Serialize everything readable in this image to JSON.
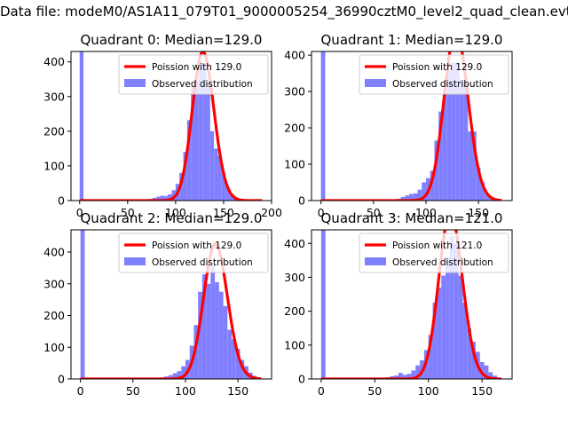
{
  "figure": {
    "suptitle": "Data file: modeM0/AS1A11_079T01_9000005254_36990cztM0_level2_quad_clean.evt"
  },
  "chart_data": [
    {
      "type": "bar",
      "title": "Quadrant 0: Median=129.0",
      "xlim": [
        -9,
        200
      ],
      "ylim": [
        0,
        430
      ],
      "xticks": [
        0,
        50,
        100,
        150,
        200
      ],
      "yticks": [
        0,
        100,
        200,
        300,
        400
      ],
      "legend": {
        "placement": "top-right",
        "entries": [
          "Poission with 129.0",
          "Observed distribution"
        ]
      },
      "bin_width": 4,
      "series": [
        {
          "name": "Observed distribution",
          "x": [
            0,
            64,
            68,
            72,
            76,
            80,
            84,
            88,
            92,
            96,
            100,
            104,
            108,
            112,
            116,
            120,
            124,
            128,
            132,
            136,
            140,
            144,
            148,
            152,
            156,
            160,
            164,
            168,
            172,
            176,
            180,
            184,
            188
          ],
          "values": [
            430,
            2,
            3,
            5,
            8,
            11,
            14,
            13,
            18,
            30,
            48,
            80,
            140,
            232,
            330,
            345,
            400,
            395,
            340,
            200,
            150,
            130,
            80,
            40,
            18,
            10,
            5,
            3,
            2,
            1,
            1,
            0,
            1
          ]
        },
        {
          "name": "Poission with 129.0",
          "lambda": 129.0,
          "curve_x_range": [
            0,
            190
          ]
        }
      ],
      "bar_color": "#8080ff",
      "line_color": "#ff0000"
    },
    {
      "type": "bar",
      "title": "Quadrant 1: Median=129.0",
      "xlim": [
        -9,
        182
      ],
      "ylim": [
        0,
        410
      ],
      "xticks": [
        0,
        50,
        100,
        150
      ],
      "yticks": [
        0,
        100,
        200,
        300,
        400
      ],
      "legend": {
        "placement": "top-right",
        "entries": [
          "Poission with 129.0",
          "Observed distribution"
        ]
      },
      "bin_width": 4,
      "series": [
        {
          "name": "Observed distribution",
          "x": [
            0,
            60,
            64,
            68,
            72,
            76,
            80,
            84,
            88,
            92,
            96,
            100,
            104,
            108,
            112,
            116,
            120,
            124,
            128,
            132,
            136,
            140,
            144,
            148,
            152,
            156,
            160,
            164,
            168,
            172
          ],
          "values": [
            410,
            2,
            2,
            3,
            5,
            10,
            14,
            18,
            20,
            30,
            50,
            62,
            82,
            165,
            245,
            295,
            355,
            380,
            378,
            330,
            325,
            190,
            190,
            90,
            50,
            20,
            10,
            4,
            2,
            1
          ]
        },
        {
          "name": "Poission with 129.0",
          "lambda": 129.0,
          "curve_x_range": [
            0,
            172
          ]
        }
      ],
      "bar_color": "#8080ff",
      "line_color": "#ff0000"
    },
    {
      "type": "bar",
      "title": "Quadrant 2: Median=129.0",
      "xlim": [
        -9,
        182
      ],
      "ylim": [
        0,
        470
      ],
      "xticks": [
        0,
        50,
        100,
        150
      ],
      "yticks": [
        0,
        100,
        200,
        300,
        400
      ],
      "legend": {
        "placement": "top-right",
        "entries": [
          "Poission with 129.0",
          "Observed distribution"
        ]
      },
      "bin_width": 4,
      "series": [
        {
          "name": "Observed distribution",
          "x": [
            0,
            72,
            76,
            80,
            84,
            88,
            92,
            96,
            100,
            104,
            108,
            112,
            116,
            120,
            124,
            128,
            132,
            136,
            140,
            144,
            148,
            152,
            156,
            160,
            164,
            168,
            172
          ],
          "values": [
            470,
            2,
            5,
            8,
            12,
            18,
            25,
            40,
            60,
            105,
            170,
            275,
            330,
            300,
            360,
            305,
            275,
            230,
            155,
            125,
            95,
            60,
            40,
            20,
            10,
            4,
            1
          ]
        },
        {
          "name": "Poission with 129.0",
          "lambda": 129.0,
          "curve_x_range": [
            0,
            172
          ]
        }
      ],
      "bar_color": "#8080ff",
      "line_color": "#ff0000"
    },
    {
      "type": "bar",
      "title": "Quadrant 3: Median=121.0",
      "xlim": [
        -9,
        178
      ],
      "ylim": [
        0,
        440
      ],
      "xticks": [
        0,
        50,
        100,
        150
      ],
      "yticks": [
        0,
        100,
        200,
        300,
        400
      ],
      "legend": {
        "placement": "top-right",
        "entries": [
          "Poission with 121.0",
          "Observed distribution"
        ]
      },
      "bin_width": 4,
      "series": [
        {
          "name": "Observed distribution",
          "x": [
            0,
            52,
            56,
            60,
            64,
            68,
            72,
            76,
            80,
            84,
            88,
            92,
            96,
            100,
            104,
            108,
            112,
            116,
            120,
            124,
            128,
            132,
            136,
            140,
            144,
            148,
            152,
            156,
            160,
            164
          ],
          "values": [
            440,
            2,
            3,
            5,
            8,
            10,
            18,
            12,
            15,
            25,
            40,
            55,
            85,
            130,
            225,
            270,
            305,
            360,
            420,
            400,
            305,
            225,
            150,
            110,
            80,
            50,
            40,
            20,
            10,
            3
          ]
        },
        {
          "name": "Poission with 121.0",
          "lambda": 121.0,
          "curve_x_range": [
            0,
            168
          ]
        }
      ],
      "bar_color": "#8080ff",
      "line_color": "#ff0000"
    }
  ]
}
